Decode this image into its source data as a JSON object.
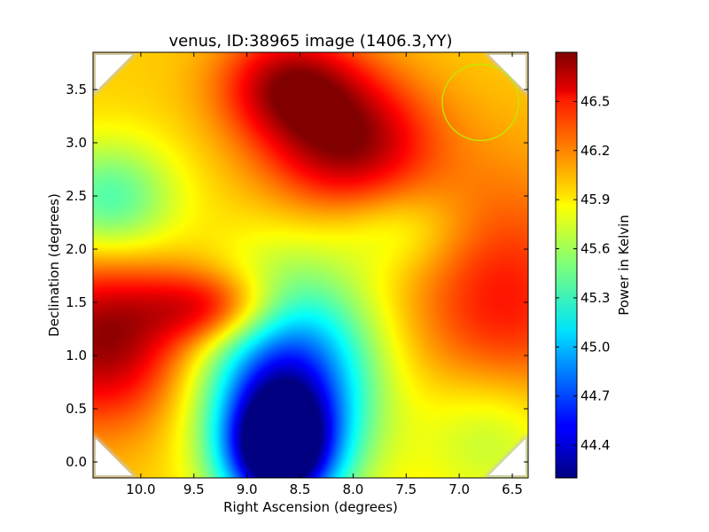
{
  "chart_data": {
    "type": "heatmap",
    "title": "venus, ID:38965 image (1406.3,YY)",
    "xlabel": "Right Ascension (degrees)",
    "ylabel": "Declination (degrees)",
    "xlim": [
      10.45,
      6.35
    ],
    "ylim": [
      -0.15,
      3.85
    ],
    "xaxis_inverted": true,
    "colormap": "jet",
    "x_ticks": [
      10.0,
      9.5,
      9.0,
      8.5,
      8.0,
      7.5,
      7.0,
      6.5
    ],
    "x_tick_labels": [
      "10.0",
      "9.5",
      "9.0",
      "8.5",
      "8.0",
      "7.5",
      "7.0",
      "6.5"
    ],
    "y_ticks": [
      0.0,
      0.5,
      1.0,
      1.5,
      2.0,
      2.5,
      3.0,
      3.5
    ],
    "y_tick_labels": [
      "0.0",
      "0.5",
      "1.0",
      "1.5",
      "2.0",
      "2.5",
      "3.0",
      "3.5"
    ],
    "colorbar": {
      "label": "Power in Kelvin",
      "range": [
        44.2,
        46.8
      ],
      "ticks": [
        44.4,
        44.7,
        45.0,
        45.3,
        45.6,
        45.9,
        46.2,
        46.5
      ],
      "tick_labels": [
        "44.4",
        "44.7",
        "45.0",
        "45.3",
        "45.6",
        "45.9",
        "46.2",
        "46.5"
      ]
    },
    "features": [
      {
        "ra": 8.05,
        "dec": 3.0,
        "value": 46.75
      },
      {
        "ra": 8.6,
        "dec": 3.55,
        "value": 46.65
      },
      {
        "ra": 10.35,
        "dec": 1.15,
        "value": 46.75
      },
      {
        "ra": 9.3,
        "dec": 1.45,
        "value": 46.6
      },
      {
        "ra": 8.7,
        "dec": 0.1,
        "value": 44.25
      },
      {
        "ra": 8.6,
        "dec": 0.75,
        "value": 44.6
      },
      {
        "ra": 10.3,
        "dec": 2.45,
        "value": 45.35
      },
      {
        "ra": 7.55,
        "dec": 2.2,
        "value": 45.7
      },
      {
        "ra": 6.6,
        "dec": 1.4,
        "value": 46.45
      },
      {
        "ra": 6.7,
        "dec": 0.3,
        "value": 45.5
      }
    ],
    "beam_circle": {
      "ra": 6.8,
      "dec": 3.38,
      "radius_deg": 0.36,
      "color": "#bbee00"
    }
  }
}
